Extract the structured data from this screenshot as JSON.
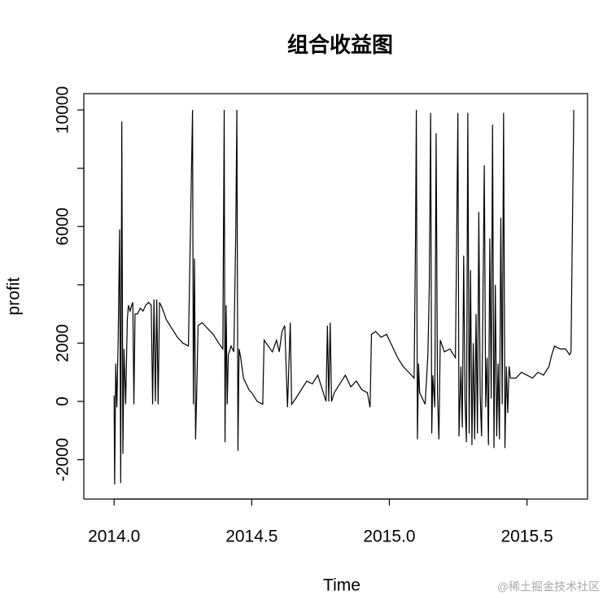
{
  "chart_data": {
    "type": "line",
    "title": "组合收益图",
    "xlabel": "Time",
    "ylabel": "profit",
    "color": "#000000",
    "xlim": [
      2013.89,
      2015.72
    ],
    "ylim": [
      -3350,
      10560
    ],
    "xticks": [
      {
        "value": 2014,
        "label": "2014.0"
      },
      2014.5,
      {
        "value": 2015,
        "label": "2015.0"
      },
      2015.5
    ],
    "yticks": [
      -2000,
      0,
      2000,
      6000,
      10000
    ],
    "yticks_unlabeled": [
      4000,
      8000
    ],
    "watermark": "@稀土掘金技术社区",
    "x": [
      2014.0,
      2014.002,
      2014.006,
      2014.01,
      2014.015,
      2014.02,
      2014.024,
      2014.028,
      2014.032,
      2014.036,
      2014.042,
      2014.048,
      2014.052,
      2014.058,
      2014.064,
      2014.068,
      2014.072,
      2014.076,
      2014.085,
      2014.095,
      2014.105,
      2014.115,
      2014.125,
      2014.135,
      2014.14,
      2014.145,
      2014.15,
      2014.155,
      2014.16,
      2014.165,
      2014.175,
      2014.19,
      2014.21,
      2014.23,
      2014.25,
      2014.27,
      2014.285,
      2014.288,
      2014.292,
      2014.296,
      2014.3,
      2014.305,
      2014.32,
      2014.34,
      2014.36,
      2014.38,
      2014.395,
      2014.4,
      2014.403,
      2014.407,
      2014.411,
      2014.415,
      2014.425,
      2014.435,
      2014.442,
      2014.446,
      2014.45,
      2014.454,
      2014.46,
      2014.47,
      2014.48,
      2014.49,
      2014.5,
      2014.52,
      2014.54,
      2014.545,
      2014.56,
      2014.575,
      2014.59,
      2014.6,
      2014.61,
      2014.62,
      2014.63,
      2014.64,
      2014.645,
      2014.66,
      2014.68,
      2014.7,
      2014.72,
      2014.74,
      2014.76,
      2014.77,
      2014.775,
      2014.78,
      2014.785,
      2014.79,
      2014.8,
      2014.82,
      2014.84,
      2014.86,
      2014.88,
      2014.9,
      2014.92,
      2014.93,
      2014.935,
      2014.95,
      2014.97,
      2014.99,
      2015.01,
      2015.03,
      2015.05,
      2015.07,
      2015.09,
      2015.095,
      2015.098,
      2015.102,
      2015.106,
      2015.11,
      2015.13,
      2015.14,
      2015.145,
      2015.15,
      2015.154,
      2015.158,
      2015.165,
      2015.17,
      2015.175,
      2015.18,
      2015.185,
      2015.2,
      2015.22,
      2015.24,
      2015.245,
      2015.249,
      2015.253,
      2015.26,
      2015.265,
      2015.27,
      2015.275,
      2015.28,
      2015.285,
      2015.29,
      2015.295,
      2015.3,
      2015.305,
      2015.31,
      2015.315,
      2015.32,
      2015.325,
      2015.33,
      2015.335,
      2015.345,
      2015.35,
      2015.355,
      2015.36,
      2015.365,
      2015.37,
      2015.375,
      2015.38,
      2015.385,
      2015.39,
      2015.395,
      2015.4,
      2015.405,
      2015.41,
      2015.415,
      2015.42,
      2015.425,
      2015.43,
      2015.435,
      2015.44,
      2015.46,
      2015.48,
      2015.5,
      2015.52,
      2015.54,
      2015.56,
      2015.58,
      2015.59,
      2015.6,
      2015.62,
      2015.64,
      2015.655,
      2015.66,
      2015.665,
      2015.67
    ],
    "values": [
      200,
      -2850,
      1300,
      -200,
      2200,
      5900,
      -2800,
      9600,
      -1800,
      1800,
      -100,
      2800,
      3300,
      3100,
      3300,
      3400,
      -100,
      3000,
      3000,
      3200,
      3100,
      3300,
      3400,
      3300,
      -100,
      3500,
      0,
      3500,
      -100,
      3400,
      3200,
      2800,
      2500,
      2200,
      2000,
      1900,
      10000,
      -100,
      4900,
      -1300,
      200,
      2600,
      2700,
      2500,
      2300,
      2000,
      1800,
      10000,
      -1400,
      3300,
      -100,
      1600,
      1900,
      1700,
      5700,
      10000,
      -1700,
      1800,
      1500,
      800,
      600,
      400,
      300,
      0,
      -100,
      2100,
      1900,
      1700,
      2100,
      1700,
      2400,
      2600,
      -200,
      2700,
      -100,
      100,
      400,
      700,
      600,
      900,
      300,
      0,
      2600,
      0,
      2700,
      0,
      300,
      600,
      900,
      500,
      700,
      400,
      300,
      -200,
      2300,
      2400,
      2200,
      2300,
      1900,
      1500,
      1200,
      1000,
      800,
      5600,
      10000,
      -1300,
      1300,
      300,
      -100,
      1600,
      3900,
      9900,
      -1100,
      900,
      -200,
      9200,
      200,
      -1300,
      2100,
      1700,
      1800,
      1500,
      6000,
      9900,
      -1200,
      1200,
      -900,
      5000,
      0,
      -1400,
      9900,
      -1100,
      4500,
      -1500,
      2000,
      -1300,
      3000,
      -1100,
      6500,
      200,
      -1200,
      8100,
      -200,
      1500,
      -1500,
      5600,
      100,
      9500,
      -1600,
      4000,
      -1200,
      1300,
      -1300,
      6300,
      -100,
      9900,
      -1600,
      1200,
      -400,
      1200,
      800,
      800,
      1000,
      900,
      800,
      1000,
      900,
      1200,
      1600,
      1900,
      1800,
      1800,
      1600,
      1700,
      6000,
      10000
    ]
  }
}
